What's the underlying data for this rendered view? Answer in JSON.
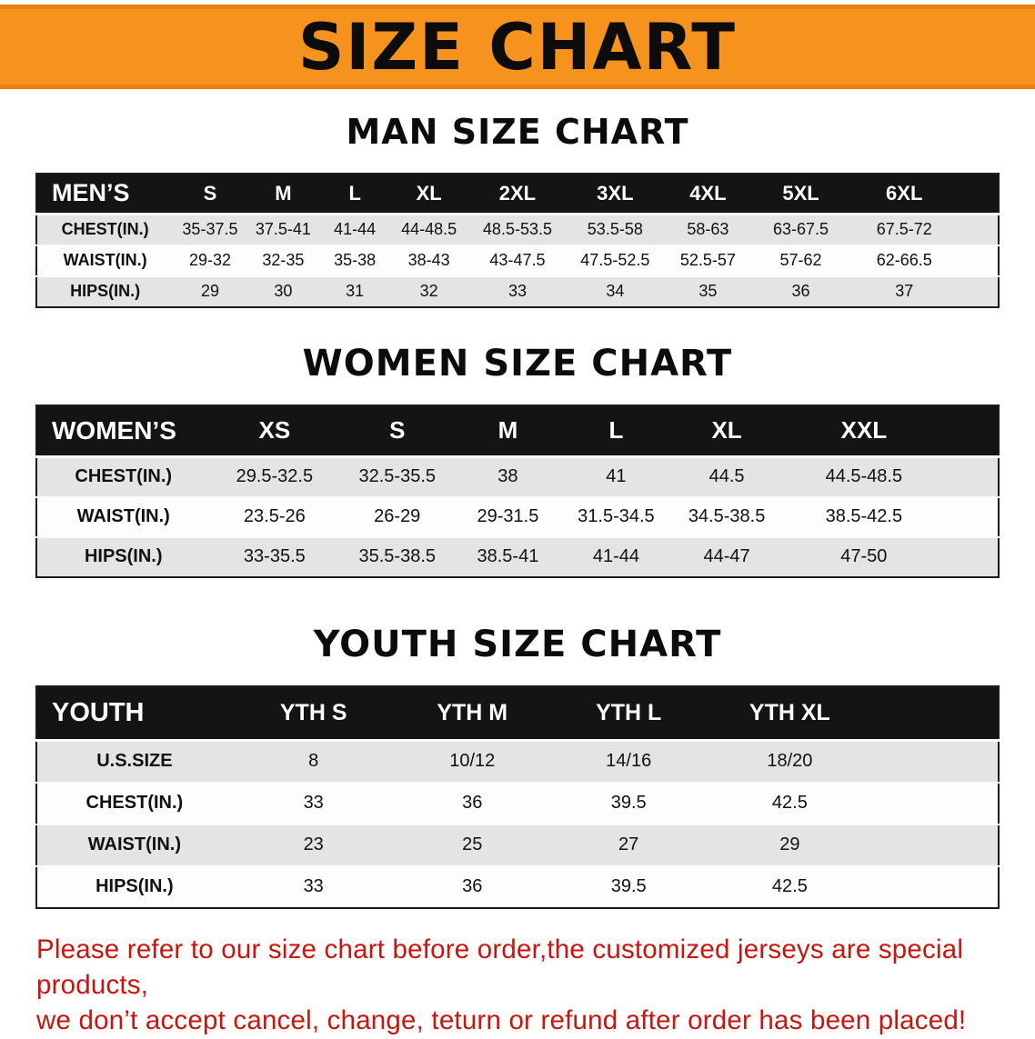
{
  "banner": {
    "title": "SIZE CHART"
  },
  "colors": {
    "banner_orange": "#f6921e",
    "table_header_black": "#141414",
    "shaded_row_gray": "#e4e4e4",
    "note_red": "#c9150d"
  },
  "men": {
    "heading": "MAN SIZE CHART",
    "table": {
      "header": [
        "MEN’S",
        "S",
        "M",
        "L",
        "XL",
        "2XL",
        "3XL",
        "4XL",
        "5XL",
        "6XL"
      ],
      "rows": [
        [
          "CHEST(IN.)",
          "35-37.5",
          "37.5-41",
          "41-44",
          "44-48.5",
          "48.5-53.5",
          "53.5-58",
          "58-63",
          "63-67.5",
          "67.5-72"
        ],
        [
          "WAIST(IN.)",
          "29-32",
          "32-35",
          "35-38",
          "38-43",
          "43-47.5",
          "47.5-52.5",
          "52.5-57",
          "57-62",
          "62-66.5"
        ],
        [
          "HIPS(IN.)",
          "29",
          "30",
          "31",
          "32",
          "33",
          "34",
          "35",
          "36",
          "37"
        ]
      ]
    }
  },
  "women": {
    "heading": "WOMEN SIZE CHART",
    "table": {
      "header": [
        "WOMEN’S",
        "XS",
        "S",
        "M",
        "L",
        "XL",
        "XXL"
      ],
      "rows": [
        [
          "CHEST(IN.)",
          "29.5-32.5",
          "32.5-35.5",
          "38",
          "41",
          "44.5",
          "44.5-48.5"
        ],
        [
          "WAIST(IN.)",
          "23.5-26",
          "26-29",
          "29-31.5",
          "31.5-34.5",
          "34.5-38.5",
          "38.5-42.5"
        ],
        [
          "HIPS(IN.)",
          "33-35.5",
          "35.5-38.5",
          "38.5-41",
          "41-44",
          "44-47",
          "47-50"
        ]
      ]
    }
  },
  "youth": {
    "heading": "YOUTH SIZE CHART",
    "table": {
      "header": [
        "YOUTH",
        "YTH S",
        "YTH M",
        "YTH L",
        "YTH XL"
      ],
      "rows": [
        [
          "U.S.SIZE",
          "8",
          "10/12",
          "14/16",
          "18/20"
        ],
        [
          "CHEST(IN.)",
          "33",
          "36",
          "39.5",
          "42.5"
        ],
        [
          "WAIST(IN.)",
          "23",
          "25",
          "27",
          "29"
        ],
        [
          "HIPS(IN.)",
          "33",
          "36",
          "39.5",
          "42.5"
        ]
      ]
    }
  },
  "note": {
    "line1": "Please refer to our size chart before order,the customized jerseys are special products,",
    "line2": "we don’t accept cancel, change, teturn or refund after order has been placed!"
  }
}
